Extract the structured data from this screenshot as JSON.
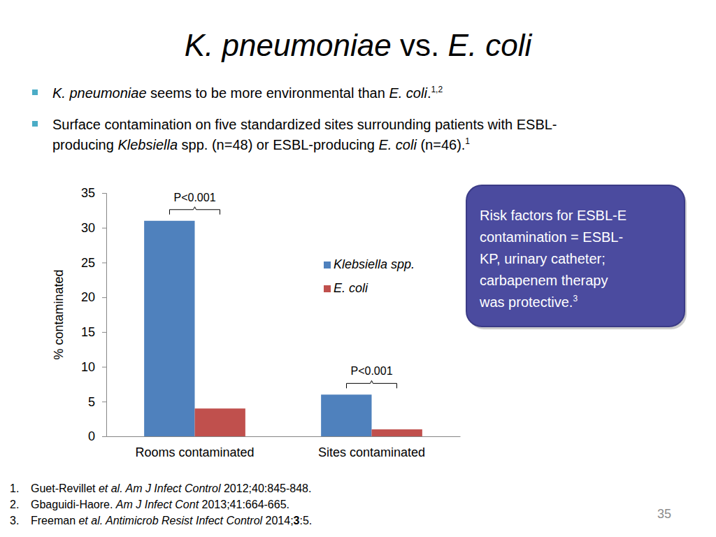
{
  "slide": {
    "title": [
      {
        "text": "K. pneumoniae",
        "style": "italic"
      },
      {
        "text": " vs. "
      },
      {
        "text": "E. coli",
        "style": "italic"
      }
    ],
    "bullets": [
      {
        "lines": [
          [
            {
              "text": "K. pneumoniae",
              "style": "italic"
            },
            {
              "text": " seems to be more environmental than "
            },
            {
              "text": "E. coli",
              "style": "italic"
            },
            {
              "text": "."
            },
            {
              "text": "1,2",
              "style": "sup"
            }
          ]
        ]
      },
      {
        "lines": [
          [
            {
              "text": "Surface contamination on five standardized sites surrounding patients with ESBL-"
            }
          ],
          [
            {
              "text": "producing "
            },
            {
              "text": "Klebsiella",
              "style": "italic"
            },
            {
              "text": " spp. (n=48) or ESBL-producing "
            },
            {
              "text": "E. coli",
              "style": "italic"
            },
            {
              "text": " (n=46)."
            },
            {
              "text": "1",
              "style": "sup"
            }
          ]
        ]
      }
    ],
    "callout": [
      [
        {
          "text": "Risk factors for ESBL-E"
        }
      ],
      [
        {
          "text": "contamination = ESBL-"
        }
      ],
      [
        {
          "text": "KP, urinary catheter;"
        }
      ],
      [
        {
          "text": "carbapenem therapy"
        }
      ],
      [
        {
          "text": "was protective."
        },
        {
          "text": "3",
          "style": "sup"
        }
      ]
    ],
    "references": [
      {
        "number": "1.",
        "runs": [
          {
            "text": "Guet-Revillet "
          },
          {
            "text": "et al. Am J Infect Control",
            "style": "italic"
          },
          {
            "text": " 2012;40:845-848."
          }
        ]
      },
      {
        "number": "2.",
        "runs": [
          {
            "text": "Gbaguidi-Haore. "
          },
          {
            "text": "Am J Infect Cont",
            "style": "italic"
          },
          {
            "text": " 2013;41:664-665."
          }
        ]
      },
      {
        "number": "3.",
        "runs": [
          {
            "text": "Freeman "
          },
          {
            "text": "et al. Antimicrob Resist Infect Control",
            "style": "italic"
          },
          {
            "text": " 2014;"
          },
          {
            "text": "3",
            "style": "bold"
          },
          {
            "text": ":5."
          }
        ]
      }
    ],
    "page_number": "35"
  },
  "chart_data": {
    "type": "bar",
    "y_label": "% contaminated",
    "categories": [
      "Rooms contaminated",
      "Sites contaminated"
    ],
    "series": [
      {
        "name": "Klebsiella spp.",
        "color": "#4f81bd",
        "values": [
          31,
          6
        ]
      },
      {
        "name": "E. coli",
        "color": "#c0504d",
        "values": [
          4,
          1
        ]
      }
    ],
    "annotations": [
      "P<0.001",
      "P<0.001"
    ],
    "ylim": [
      0,
      35
    ],
    "yticks": [
      0,
      5,
      10,
      15,
      20,
      25,
      30,
      35
    ],
    "grid": false,
    "legend": "right"
  }
}
